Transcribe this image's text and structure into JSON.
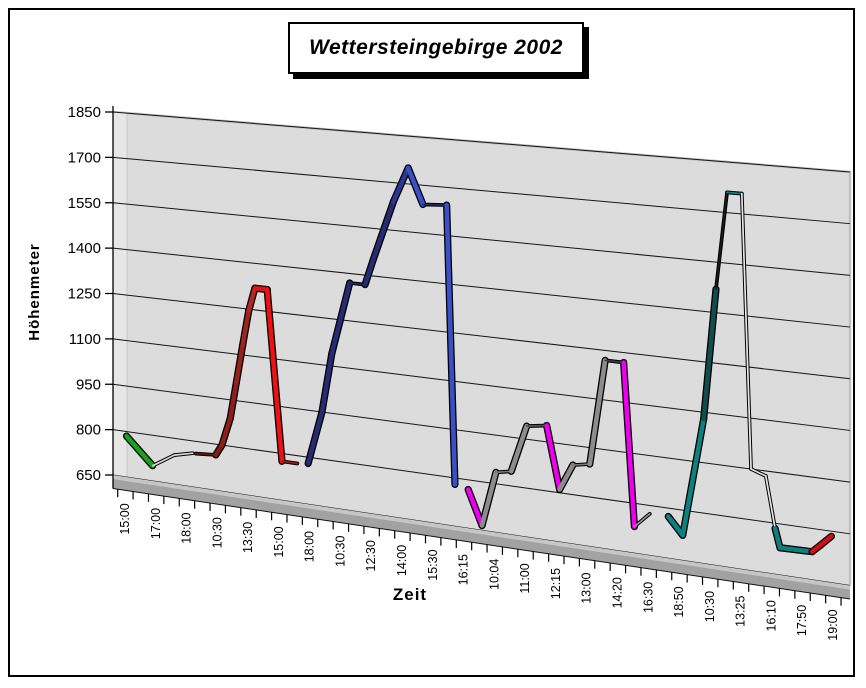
{
  "chart_data": {
    "type": "line",
    "title": "Wettersteingebirge 2002",
    "x_axis": {
      "title": "Zeit",
      "labels": [
        "15:00",
        "17:00",
        "18:00",
        "10:30",
        "13:30",
        "15:00",
        "18:00",
        "10:30",
        "12:30",
        "14:00",
        "15:30",
        "16:15",
        "10:04",
        "11:00",
        "12:15",
        "13:00",
        "14:20",
        "16:30",
        "18:50",
        "10:30",
        "13:25",
        "16:10",
        "17:50",
        "19:00"
      ]
    },
    "y_axis": {
      "title": "Höhenmeter",
      "ticks": [
        650,
        800,
        950,
        1100,
        1250,
        1400,
        1550,
        1700,
        1850
      ],
      "range": [
        650,
        1850
      ]
    },
    "legend": "none",
    "grid": true,
    "series": [
      {
        "name": "series-1",
        "color": "#17a317",
        "points": [
          [
            0.05,
            785
          ],
          [
            0.9,
            700
          ],
          [
            1.6,
            745
          ],
          [
            2.2,
            760
          ]
        ],
        "segs": [
          [
            "#17a317",
            "t"
          ],
          [
            "#d8d8d8",
            "n"
          ],
          [
            "#d8d8d8",
            "n"
          ]
        ]
      },
      {
        "name": "series-2",
        "color": "#e01313",
        "points": [
          [
            2.3,
            760
          ],
          [
            2.95,
            765
          ],
          [
            3.15,
            800
          ],
          [
            3.42,
            890
          ],
          [
            3.62,
            1010
          ],
          [
            3.82,
            1130
          ],
          [
            4.02,
            1245
          ],
          [
            4.22,
            1320
          ],
          [
            4.62,
            1320
          ],
          [
            5.1,
            775
          ],
          [
            5.6,
            775
          ]
        ],
        "segs": [
          [
            "#6e1511",
            "n"
          ],
          [
            "#7f1c14",
            "t"
          ],
          [
            "#8c2018",
            "t"
          ],
          [
            "#8c2018",
            "t"
          ],
          [
            "#96231a",
            "t"
          ],
          [
            "#a2251c",
            "t"
          ],
          [
            "#b22720",
            "t"
          ],
          [
            "#e01313",
            "t"
          ],
          [
            "#ee1111",
            "t"
          ],
          [
            "#b01212",
            "n"
          ]
        ]
      },
      {
        "name": "series-3",
        "color": "#252c72",
        "points": [
          [
            5.95,
            780
          ],
          [
            6.4,
            950
          ],
          [
            6.72,
            1140
          ],
          [
            7.3,
            1370
          ],
          [
            7.8,
            1370
          ],
          [
            8.06,
            1450
          ],
          [
            8.72,
            1640
          ],
          [
            9.2,
            1750
          ],
          [
            9.68,
            1640
          ],
          [
            10.45,
            1645
          ],
          [
            10.72,
            780
          ]
        ],
        "segs": [
          [
            "#252c72",
            "t"
          ],
          [
            "#252c72",
            "t"
          ],
          [
            "#252c72",
            "t"
          ],
          [
            "#20265e",
            "n"
          ],
          [
            "#252c72",
            "t"
          ],
          [
            "#252c72",
            "t"
          ],
          [
            "#2c3694",
            "t"
          ],
          [
            "#3a50c8",
            "t"
          ],
          [
            "#232a68",
            "n"
          ],
          [
            "#3a50c8",
            "t"
          ]
        ]
      },
      {
        "name": "series-4",
        "color": "#ee00ee",
        "points": [
          [
            11.15,
            770
          ],
          [
            11.6,
            665
          ],
          [
            12.05,
            835
          ],
          [
            12.55,
            845
          ],
          [
            13.05,
            990
          ],
          [
            13.7,
            1000
          ],
          [
            14.12,
            810
          ],
          [
            14.55,
            890
          ],
          [
            15.1,
            900
          ],
          [
            15.6,
            1220
          ],
          [
            16.2,
            1220
          ],
          [
            16.55,
            730
          ],
          [
            17.05,
            775
          ]
        ],
        "segs": [
          [
            "#ee00ee",
            "t"
          ],
          [
            "#8c8c8c",
            "t"
          ],
          [
            "#787878",
            "n"
          ],
          [
            "#8c8c8c",
            "t"
          ],
          [
            "#555555",
            "n"
          ],
          [
            "#ee00ee",
            "t"
          ],
          [
            "#8c8c8c",
            "t"
          ],
          [
            "#787878",
            "n"
          ],
          [
            "#8c8c8c",
            "t"
          ],
          [
            "#3a3a3a",
            "n"
          ],
          [
            "#ee00ee",
            "t"
          ],
          [
            "#909090",
            "n"
          ]
        ]
      },
      {
        "name": "series-5",
        "color": "#0f8080",
        "points": [
          [
            17.65,
            775
          ],
          [
            18.12,
            725
          ],
          [
            18.8,
            1080
          ],
          [
            19.2,
            1470
          ],
          [
            19.56,
            1760
          ],
          [
            20.04,
            1760
          ],
          [
            20.34,
            950
          ],
          [
            20.82,
            935
          ],
          [
            21.12,
            785
          ],
          [
            21.28,
            730
          ],
          [
            22.25,
            732
          ]
        ],
        "segs": [
          [
            "#0f8080",
            "t"
          ],
          [
            "#0f8080",
            "t"
          ],
          [
            "#114d4d",
            "t"
          ],
          [
            "#1a1a1a",
            "n"
          ],
          [
            "#0f8080",
            "n"
          ],
          [
            "#e6e6e6",
            "n"
          ],
          [
            "#e0e0e0",
            "n"
          ],
          [
            "#e6e6e6",
            "n"
          ],
          [
            "#0f8080",
            "t"
          ],
          [
            "#0f8080",
            "t"
          ]
        ]
      },
      {
        "name": "series-6",
        "color": "#cc1111",
        "points": [
          [
            22.32,
            732
          ],
          [
            22.6,
            755
          ],
          [
            22.95,
            785
          ]
        ],
        "segs": [
          [
            "#cc1111",
            "t"
          ],
          [
            "#cc1111",
            "t"
          ]
        ]
      }
    ]
  }
}
